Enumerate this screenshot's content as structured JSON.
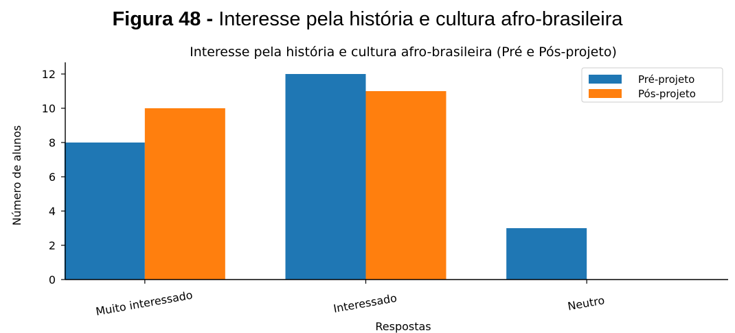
{
  "figure_caption": {
    "label": "Figura 48 -",
    "text": "Interesse pela história e cultura afro-brasileira"
  },
  "chart_data": {
    "type": "bar",
    "title": "Interesse pela história e cultura afro-brasileira (Pré e Pós-projeto)",
    "xlabel": "Respostas",
    "ylabel": "Número de alunos",
    "categories": [
      "Muito interessado",
      "Interessado",
      "Neutro"
    ],
    "series": [
      {
        "name": "Pré-projeto",
        "values": [
          8,
          12,
          3
        ],
        "color": "#1f77b4"
      },
      {
        "name": "Pós-projeto",
        "values": [
          10,
          11,
          0
        ],
        "color": "#ff7f0e"
      }
    ],
    "ylim": [
      0,
      12.6
    ],
    "yticks": [
      0,
      2,
      4,
      6,
      8,
      10,
      12
    ],
    "legend_position": "top-right",
    "grid": false
  }
}
